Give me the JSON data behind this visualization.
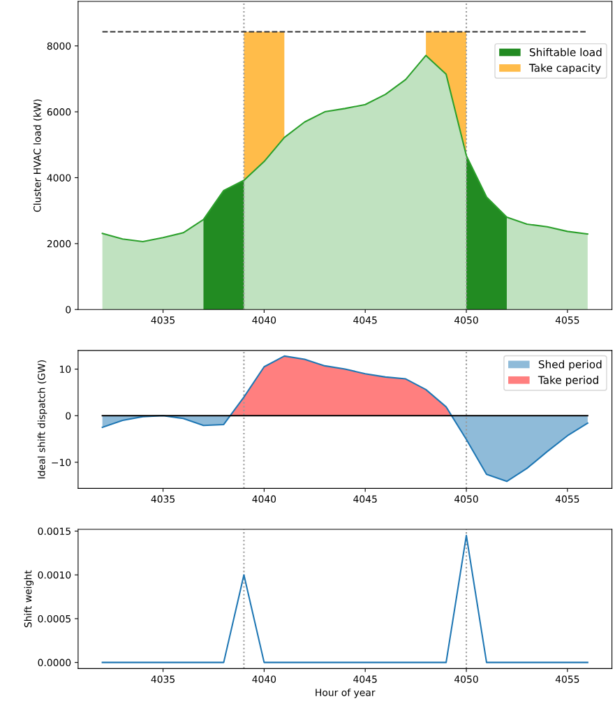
{
  "chart_data": [
    {
      "type": "area",
      "ylabel": "Cluster HVAC load (kW)",
      "xlim": [
        4030.8,
        4057.2
      ],
      "ylim": [
        0,
        9350
      ],
      "xticks": [
        4035,
        4040,
        4045,
        4050,
        4055
      ],
      "yticks": [
        0,
        2000,
        4000,
        6000,
        8000
      ],
      "grid": false,
      "legend": "top right",
      "x": [
        4032,
        4033,
        4034,
        4035,
        4036,
        4037,
        4038,
        4039,
        4040,
        4041,
        4042,
        4043,
        4044,
        4045,
        4046,
        4047,
        4048,
        4049,
        4050,
        4051,
        4052,
        4053,
        4054,
        4055,
        4056
      ],
      "series": [
        {
          "type": "area",
          "name": "Take capacity",
          "color": "#ffbc4a",
          "x": [
            4039,
            4040,
            4041,
            4044,
            4048,
            4049,
            4050
          ],
          "values": [
            8430,
            8430,
            8430,
            null,
            8430,
            8430,
            8430
          ]
        },
        {
          "type": "area",
          "color": "#2ca02c",
          "line_style": "solid",
          "values": [
            2310,
            2140,
            2060,
            2180,
            2330,
            2730,
            3610,
            3920,
            4490,
            5220,
            5690,
            6000,
            6100,
            6220,
            6530,
            6980,
            7710,
            7140,
            4670,
            3410,
            2800,
            2590,
            2510,
            2370,
            2290
          ]
        },
        {
          "type": "area",
          "name": "Shiftable load",
          "color": "#228b22",
          "x": [
            4037,
            4038,
            4039,
            4044,
            4050,
            4051,
            4052
          ],
          "values": [
            2730,
            3610,
            3920,
            null,
            4670,
            3410,
            2800
          ]
        },
        {
          "type": "line",
          "color": "#333333",
          "line_style": "dashed",
          "x": [
            4032,
            4056
          ],
          "values": [
            8430,
            8430
          ]
        }
      ],
      "ref_lines": [
        {
          "axis": "x",
          "value": 4039,
          "color": "#999999",
          "line_style": "dotted"
        },
        {
          "axis": "x",
          "value": 4050,
          "color": "#999999",
          "line_style": "dotted"
        }
      ]
    },
    {
      "type": "area",
      "ylabel": "Ideal shift dispatch (GW)",
      "xlim": [
        4030.8,
        4057.2
      ],
      "ylim": [
        -15.6,
        14.0
      ],
      "xticks": [
        4035,
        4040,
        4045,
        4050,
        4055
      ],
      "yticks": [
        {
          "value": -10,
          "label": "−10"
        },
        0,
        10
      ],
      "grid": false,
      "legend": "top right",
      "x": [
        4032,
        4033,
        4034,
        4035,
        4036,
        4037,
        4038,
        4039,
        4040,
        4041,
        4042,
        4043,
        4044,
        4045,
        4046,
        4047,
        4048,
        4049,
        4050,
        4051,
        4052,
        4053,
        4054,
        4055,
        4056
      ],
      "series": [
        {
          "type": "area",
          "name": "Take period",
          "color": "#ff7f7f",
          "x": [
            4038.32,
            4039,
            4040,
            4041,
            4042,
            4043,
            4044,
            4045,
            4046,
            4047,
            4048,
            4049,
            4049.27
          ],
          "values": [
            0,
            4.0,
            10.5,
            12.8,
            12.1,
            10.7,
            10.0,
            9.0,
            8.3,
            7.9,
            5.6,
            1.9,
            0
          ]
        },
        {
          "type": "area",
          "name": "Shed period",
          "color": "#8fbbd9",
          "x": [
            4032,
            4033,
            4034,
            4035,
            4036,
            4037,
            4038,
            4038.32,
            4044,
            4049.27,
            4050,
            4051,
            4052,
            4053,
            4054,
            4055,
            4056
          ],
          "values": [
            -2.5,
            -1.0,
            -0.2,
            0,
            -0.6,
            -2.1,
            -1.9,
            0,
            null,
            0,
            -5.1,
            -12.6,
            -14.1,
            -11.3,
            -7.7,
            -4.3,
            -1.6
          ]
        },
        {
          "type": "line",
          "color": "#1f77b4",
          "values": [
            -2.5,
            -1.0,
            -0.2,
            0,
            -0.6,
            -2.1,
            -1.9,
            4.0,
            10.5,
            12.8,
            12.1,
            10.7,
            10.0,
            9.0,
            8.3,
            7.9,
            5.6,
            1.9,
            -5.1,
            -12.6,
            -14.1,
            -11.3,
            -7.7,
            -4.3,
            -1.6
          ]
        },
        {
          "type": "line",
          "color": "#000000",
          "x": [
            4032,
            4056
          ],
          "values": [
            0,
            0
          ]
        }
      ],
      "ref_lines": [
        {
          "axis": "x",
          "value": 4039,
          "color": "#999999",
          "line_style": "dotted"
        },
        {
          "axis": "x",
          "value": 4050,
          "color": "#999999",
          "line_style": "dotted"
        }
      ]
    },
    {
      "type": "line",
      "xlabel": "Hour of year",
      "ylabel": "Shift weight",
      "xlim": [
        4030.8,
        4057.2
      ],
      "ylim": [
        -7e-05,
        0.00152
      ],
      "xticks": [
        4035,
        4040,
        4045,
        4050,
        4055
      ],
      "yticks": [
        {
          "value": 0,
          "label": "0.0000"
        },
        {
          "value": 0.0005,
          "label": "0.0005"
        },
        {
          "value": 0.001,
          "label": "0.0010"
        },
        {
          "value": 0.0015,
          "label": "0.0015"
        }
      ],
      "grid": false,
      "x": [
        4032,
        4033,
        4034,
        4035,
        4036,
        4037,
        4038,
        4039,
        4040,
        4041,
        4042,
        4043,
        4044,
        4045,
        4046,
        4047,
        4048,
        4049,
        4050,
        4051,
        4052,
        4053,
        4054,
        4055,
        4056
      ],
      "series": [
        {
          "color": "#1f77b4",
          "values": [
            0,
            0,
            0,
            0,
            0,
            0,
            0,
            0.001,
            0,
            0,
            0,
            0,
            0,
            0,
            0,
            0,
            0,
            0,
            0.00145,
            0,
            0,
            0,
            0,
            0,
            0
          ]
        }
      ],
      "ref_lines": [
        {
          "axis": "x",
          "value": 4039,
          "color": "#999999",
          "line_style": "dotted"
        },
        {
          "axis": "x",
          "value": 4050,
          "color": "#999999",
          "line_style": "dotted"
        }
      ]
    }
  ]
}
